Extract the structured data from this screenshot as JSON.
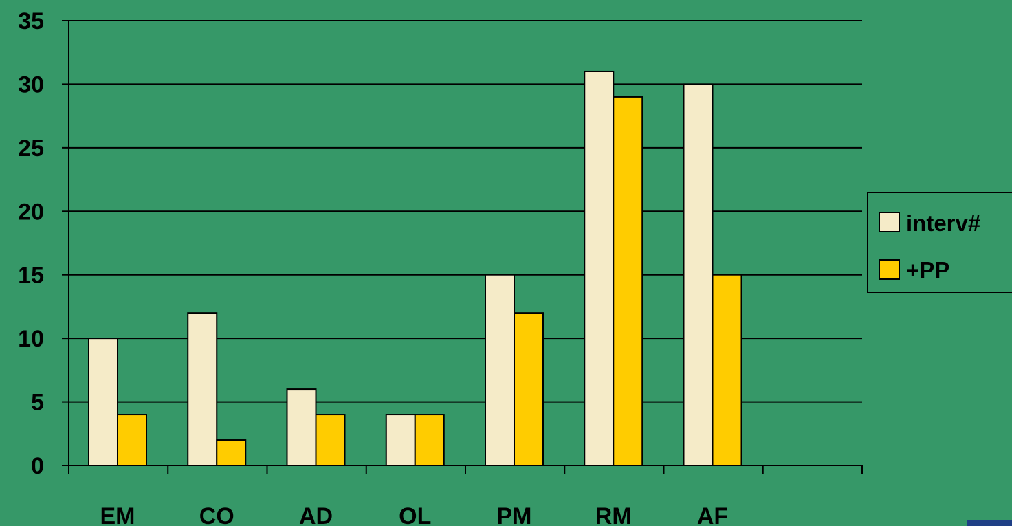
{
  "chart_data": {
    "type": "bar",
    "categories": [
      "EM",
      "CO",
      "AD",
      "OL",
      "PM",
      "RM",
      "AF",
      ""
    ],
    "series": [
      {
        "name": "interv#",
        "values": [
          10,
          12,
          6,
          4,
          15,
          31,
          30,
          null
        ]
      },
      {
        "name": "+PP",
        "values": [
          4,
          2,
          4,
          4,
          12,
          29,
          15,
          null
        ]
      }
    ],
    "ylim": [
      0,
      35
    ],
    "yticks": [
      0,
      5,
      10,
      15,
      20,
      25,
      30,
      35
    ],
    "grid": true,
    "legend_position": "right",
    "title": "",
    "xlabel": "",
    "ylabel": ""
  },
  "colors": {
    "background": "#369868",
    "series": [
      "#F5EBC8",
      "#FFCC00"
    ],
    "axis": "#000000",
    "corner_mark": "#1F3F86"
  }
}
